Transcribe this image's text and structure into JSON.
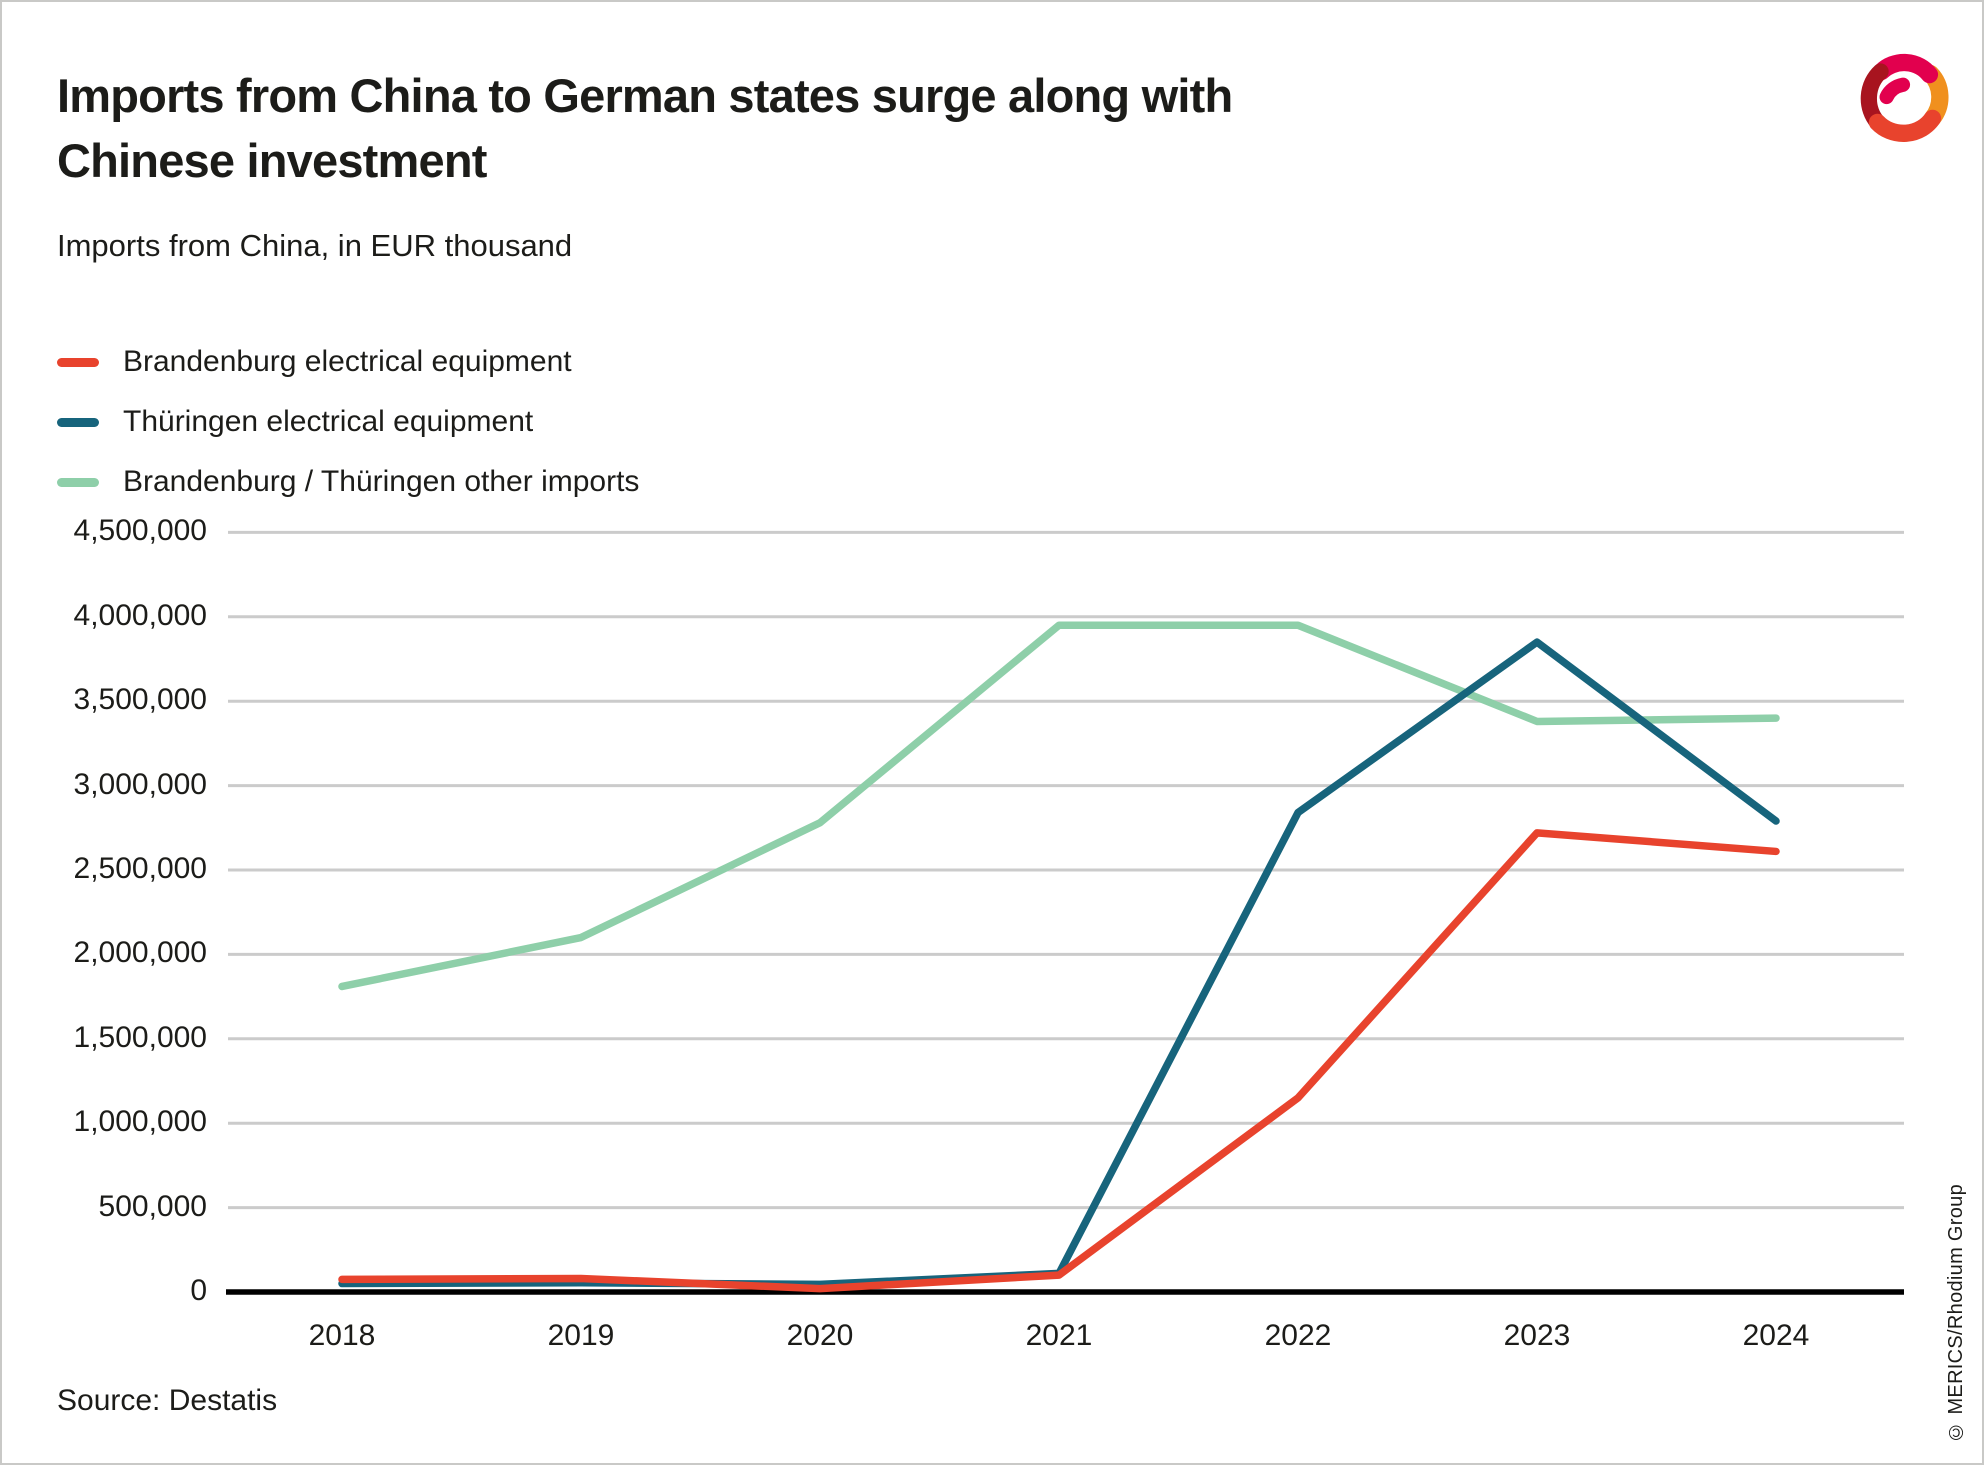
{
  "header": {
    "title_line1": "Imports from China to German states surge along with",
    "title_line2": "Chinese investment",
    "subtitle": "Imports from China, in EUR thousand"
  },
  "footer": {
    "source": "Source: Destatis",
    "copyright": "© MERICS/Rhodium Group"
  },
  "logo": {
    "name": "MERICS logo",
    "colors": [
      "#a8141f",
      "#e2004e",
      "#f0901e",
      "#e8432d"
    ]
  },
  "colors": {
    "gridline": "#cbcbcb",
    "axis": "#000000",
    "text": "#1c1c19"
  },
  "chart_data": {
    "type": "line",
    "title": "Imports from China to German states surge along with Chinese investment",
    "subtitle": "Imports from China, in EUR thousand",
    "x": [
      "2018",
      "2019",
      "2020",
      "2021",
      "2022",
      "2023",
      "2024"
    ],
    "series": [
      {
        "name": "Brandenburg electrical equipment",
        "color": "#e8432d",
        "values": [
          75000,
          80000,
          20000,
          100000,
          1150000,
          2720000,
          2610000
        ]
      },
      {
        "name": "Thüringen electrical equipment",
        "color": "#17647c",
        "values": [
          50000,
          55000,
          45000,
          110000,
          2840000,
          3850000,
          2790000
        ]
      },
      {
        "name": "Brandenburg / Thüringen other imports",
        "color": "#8ecfa9",
        "values": [
          1810000,
          2100000,
          2780000,
          3950000,
          3950000,
          3380000,
          3400000
        ]
      }
    ],
    "ylim": [
      0,
      4500000
    ],
    "ytick_step": 500000,
    "y_tick_labels": [
      "0",
      "500,000",
      "1,000,000",
      "1,500,000",
      "2,000,000",
      "2,500,000",
      "3,000,000",
      "3,500,000",
      "4,000,000",
      "4,500,000"
    ],
    "grid": "horizontal",
    "legend_position": "top-left"
  }
}
